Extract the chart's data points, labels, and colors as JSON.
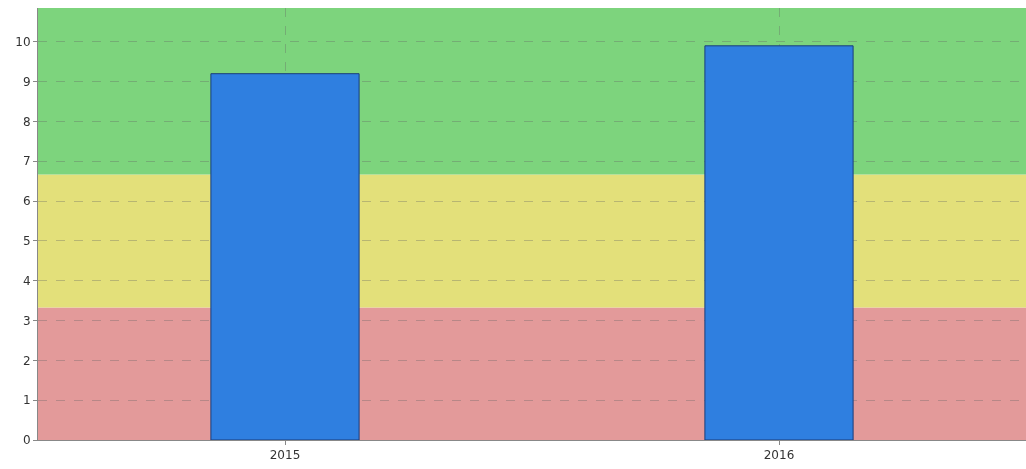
{
  "chart_data": {
    "type": "bar",
    "categories": [
      "2015",
      "2016"
    ],
    "series": [
      {
        "color": "#2f7fe0",
        "values": [
          9.2,
          9.9
        ]
      }
    ],
    "ylim": [
      0,
      10.85
    ],
    "yticks": [
      0,
      1,
      2,
      3,
      4,
      5,
      6,
      7,
      8,
      9,
      10
    ],
    "grid": true,
    "bands": [
      {
        "axis": "y",
        "from": 0,
        "to": 3.33,
        "color": "#e39a9a"
      },
      {
        "axis": "y",
        "from": 3.33,
        "to": 6.67,
        "color": "#e3e07a"
      },
      {
        "axis": "y",
        "from": 6.67,
        "to": 10.85,
        "color": "#7dd47d"
      }
    ]
  }
}
